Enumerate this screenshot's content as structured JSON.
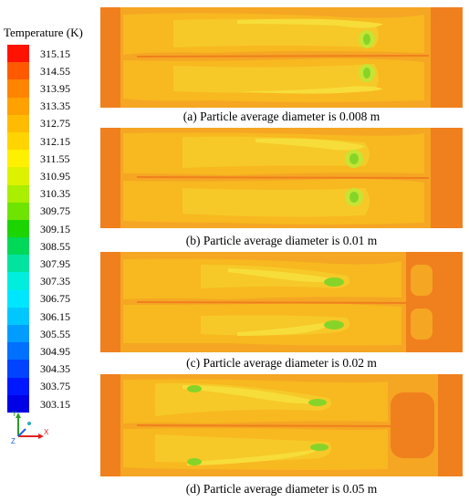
{
  "legend": {
    "title": "Temperature (K)",
    "ticks": [
      "315.15",
      "314.55",
      "313.95",
      "313.35",
      "312.75",
      "312.15",
      "311.55",
      "310.95",
      "310.35",
      "309.75",
      "309.15",
      "308.55",
      "307.95",
      "307.35",
      "306.75",
      "306.15",
      "305.55",
      "304.95",
      "304.35",
      "303.75",
      "303.15"
    ],
    "colors": [
      "#ff1200",
      "#ff5a00",
      "#ff8400",
      "#ffa100",
      "#ffbb00",
      "#ffd400",
      "#fff000",
      "#ddf200",
      "#aaee00",
      "#6fe400",
      "#1cd500",
      "#00d858",
      "#00e4a0",
      "#00eedd",
      "#00e6ff",
      "#00c8ff",
      "#009cff",
      "#0070ff",
      "#0044ff",
      "#0018ff",
      "#0000e6"
    ]
  },
  "panels": [
    {
      "caption": "(a) Particle average diameter is 0.008 m"
    },
    {
      "caption": "(b) Particle average diameter is 0.01 m"
    },
    {
      "caption": "(c) Particle average diameter is 0.02 m"
    },
    {
      "caption": "(d) Particle average diameter is 0.05 m"
    }
  ],
  "axes": {
    "x": "X",
    "y": "Y",
    "z": "Z"
  },
  "palette": {
    "edge": "#f07f1e",
    "mid": "#f5a623",
    "warm": "#f8b820",
    "light": "#f6c928",
    "yellow": "#f7dd3a",
    "green": "#86d42a",
    "lime": "#c6e434"
  }
}
